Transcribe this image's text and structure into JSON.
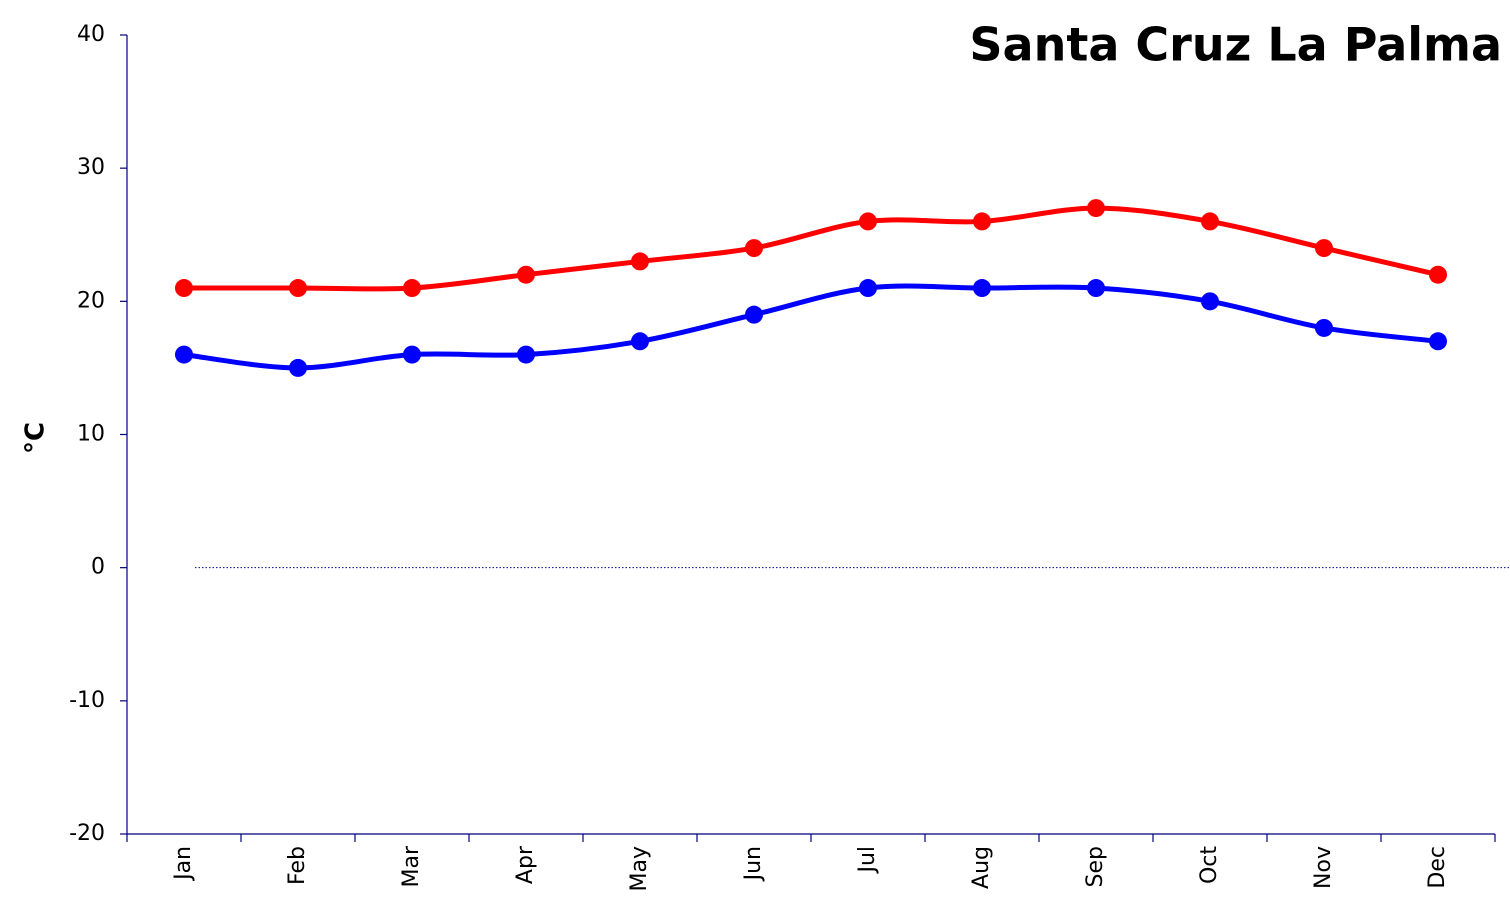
{
  "chart_data": {
    "type": "line",
    "title": "Santa Cruz La Palma",
    "y_label": "°C",
    "categories": [
      "Jan",
      "Feb",
      "Mar",
      "Apr",
      "May",
      "Jun",
      "Jul",
      "Aug",
      "Sep",
      "Oct",
      "Nov",
      "Dec"
    ],
    "series": [
      {
        "color": "#ff0000",
        "values": [
          21,
          21,
          21,
          22,
          23,
          24,
          26,
          26,
          27,
          26,
          24,
          22
        ]
      },
      {
        "color": "#0000ff",
        "values": [
          16,
          15,
          16,
          16,
          17,
          19,
          21,
          21,
          21,
          20,
          18,
          17
        ]
      }
    ],
    "ylim": [
      -20,
      40
    ],
    "yticks": [
      -20,
      -10,
      0,
      10,
      20,
      30,
      40
    ],
    "smooth": true,
    "zero_line": true
  }
}
